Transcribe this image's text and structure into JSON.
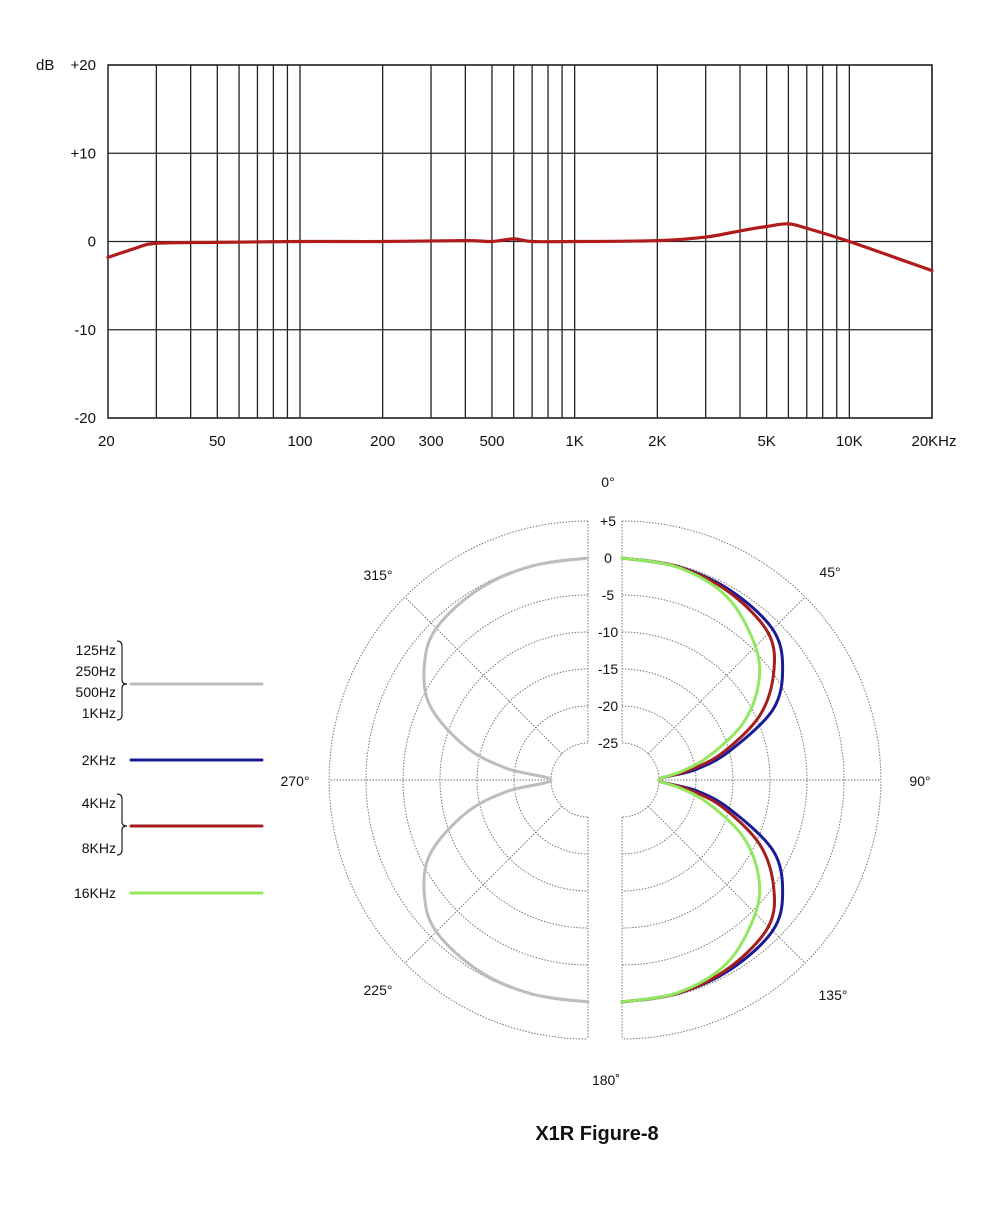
{
  "chart_data": [
    {
      "type": "line",
      "xscale": "log",
      "xlim": [
        20,
        20000
      ],
      "ylim": [
        -20,
        20
      ],
      "grid": true,
      "ylabel": "dB",
      "y_ticks": [
        "+20",
        "+10",
        "0",
        "-10",
        "-20"
      ],
      "y_tick_values": [
        20,
        10,
        0,
        -10,
        -20
      ],
      "x_ticks": [
        "20",
        "50",
        "100",
        "200",
        "300",
        "500",
        "1K",
        "2K",
        "5K",
        "10K",
        "20KHz"
      ],
      "x_tick_values": [
        20,
        50,
        100,
        200,
        300,
        500,
        1000,
        2000,
        5000,
        10000,
        20000
      ],
      "x_gridlines": [
        30,
        40,
        50,
        60,
        70,
        80,
        90,
        100,
        200,
        300,
        400,
        500,
        600,
        700,
        800,
        900,
        1000,
        2000,
        3000,
        4000,
        5000,
        6000,
        7000,
        8000,
        9000,
        10000,
        20000
      ],
      "series": [
        {
          "color": "#b01c1c",
          "x": [
            20,
            25,
            30,
            50,
            100,
            200,
            400,
            500,
            600,
            700,
            1000,
            2000,
            3000,
            4000,
            5000,
            6000,
            7000,
            10000,
            20000
          ],
          "y": [
            -1.8,
            -0.8,
            -0.2,
            -0.1,
            0,
            0,
            0.1,
            0,
            0.3,
            0,
            0,
            0.1,
            0.5,
            1.2,
            1.7,
            2.0,
            1.5,
            0,
            -3.3
          ]
        }
      ]
    },
    {
      "type": "polar",
      "title": "X1R Figure-8",
      "r_ticks": [
        "+5",
        "0",
        "-5",
        "-10",
        "-15",
        "-20",
        "-25"
      ],
      "r_tick_values": [
        5,
        0,
        -5,
        -10,
        -15,
        -20,
        -25
      ],
      "rlim": [
        -25,
        5
      ],
      "angle_labels": [
        "0°",
        "45°",
        "90°",
        "135°",
        "180˚",
        "225°",
        "270°",
        "315°"
      ],
      "legend": [
        {
          "labels": [
            "125Hz",
            "250Hz",
            "500Hz",
            "1KHz"
          ],
          "color": "#bdbdbd"
        },
        {
          "labels": [
            "2KHz"
          ],
          "color": "#1b1b9a"
        },
        {
          "labels": [
            "4KHz",
            "8KHz"
          ],
          "color": "#a51d1d"
        },
        {
          "labels": [
            "16KHz"
          ],
          "color": "#93e85f"
        }
      ],
      "legend_placement": "left",
      "series": [
        {
          "name": "125Hz / 250Hz / 500Hz / 1KHz",
          "color": "#bdbdbd",
          "angles": [
            180,
            195,
            210,
            225,
            235,
            245,
            255,
            262,
            270,
            278,
            285,
            295,
            305,
            315,
            330,
            345,
            360
          ],
          "values": [
            0,
            -0.1,
            -0.3,
            -1,
            -3,
            -6.5,
            -13,
            -19,
            -25,
            -19,
            -13,
            -6.5,
            -3,
            -1,
            -0.3,
            -0.1,
            0
          ]
        },
        {
          "name": "2KHz",
          "color": "#1b1b9a",
          "angles": [
            0,
            15,
            30,
            45,
            55,
            65,
            75,
            82,
            90,
            98,
            105,
            115,
            125,
            135,
            150,
            165,
            180
          ],
          "values": [
            0,
            -0.2,
            -0.5,
            -1.2,
            -3.5,
            -7.5,
            -15,
            -20,
            -25,
            -20,
            -15,
            -7.5,
            -3.5,
            -1.2,
            -0.5,
            -0.2,
            0
          ]
        },
        {
          "name": "4KHz / 8KHz",
          "color": "#a51d1d",
          "angles": [
            0,
            15,
            30,
            45,
            55,
            65,
            75,
            82,
            90,
            98,
            105,
            115,
            125,
            135,
            150,
            165,
            180
          ],
          "values": [
            0,
            -0.2,
            -0.8,
            -2,
            -5,
            -9.5,
            -16,
            -21,
            -25,
            -21,
            -16,
            -9.5,
            -5,
            -2,
            -0.8,
            -0.2,
            0
          ]
        },
        {
          "name": "16KHz",
          "color": "#93e85f",
          "angles": [
            0,
            15,
            30,
            45,
            55,
            65,
            75,
            82,
            90,
            98,
            105,
            115,
            125,
            135,
            150,
            165,
            180
          ],
          "values": [
            0,
            -0.3,
            -1.5,
            -4.5,
            -7.5,
            -12,
            -18,
            -22,
            -25,
            -22,
            -18,
            -12,
            -7.5,
            -4.5,
            -1.5,
            -0.3,
            0
          ]
        }
      ]
    }
  ]
}
